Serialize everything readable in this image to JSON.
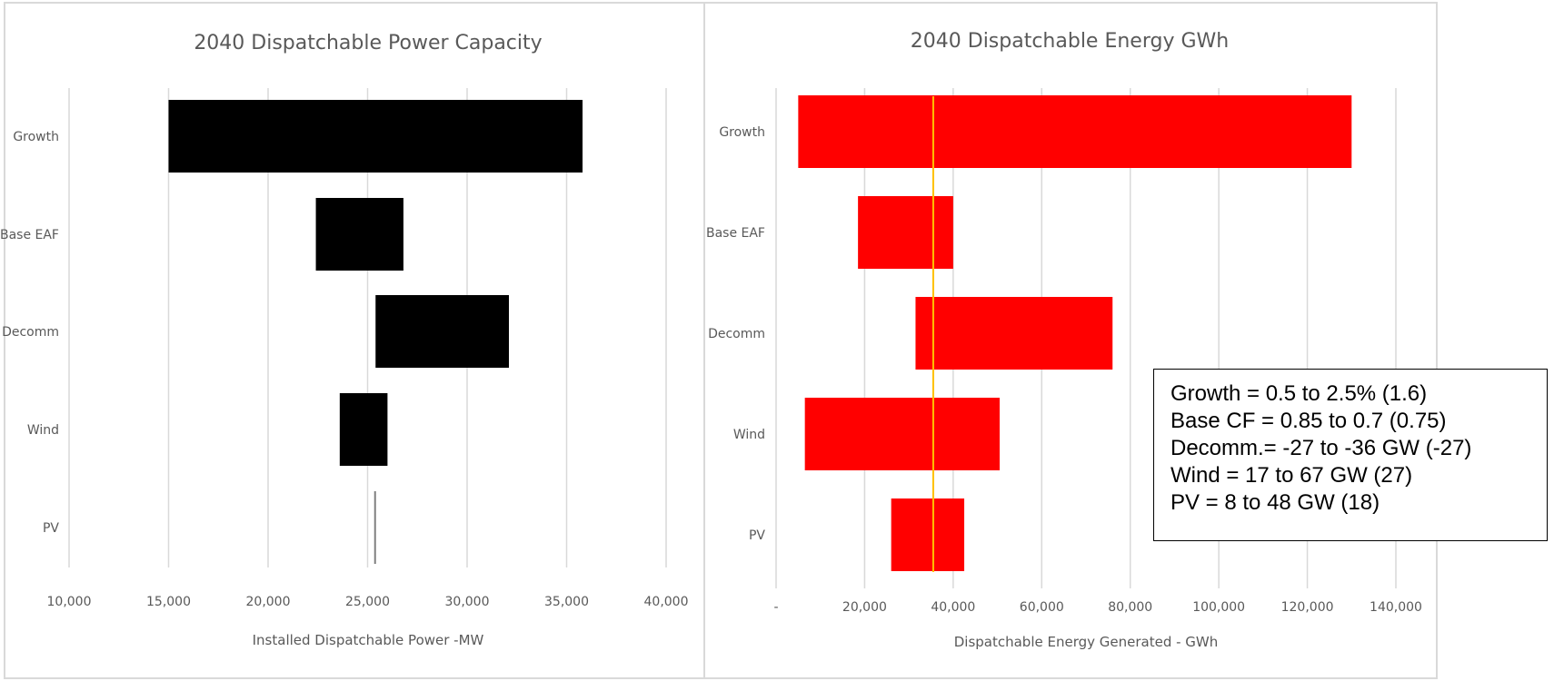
{
  "chart_data": [
    {
      "type": "bar",
      "subtype": "floating-horizontal",
      "title": "2040 Dispatchable Power Capacity",
      "xlabel": "Installed Dispatchable Power -MW",
      "ylabel": "",
      "categories": [
        "Growth",
        "Base EAF",
        "Decomm",
        "Wind",
        "PV"
      ],
      "low": [
        15000,
        22400,
        25400,
        23600,
        25330
      ],
      "high": [
        35800,
        26800,
        32100,
        26000,
        25400
      ],
      "xlim": [
        10000,
        40000
      ],
      "xticks": [
        10000,
        15000,
        20000,
        25000,
        30000,
        35000,
        40000
      ],
      "xtick_labels": [
        "10,000",
        "15,000",
        "20,000",
        "25,000",
        "30,000",
        "35,000",
        "40,000"
      ],
      "grid": true,
      "bar_color": "#000000",
      "pv_line_color": "#7f7f7f"
    },
    {
      "type": "bar",
      "subtype": "floating-horizontal",
      "title": "2040 Dispatchable  Energy GWh",
      "xlabel": "Dispatchable Energy Generated - GWh",
      "ylabel": "",
      "categories": [
        "Growth",
        "Base EAF",
        "Decomm",
        "Wind",
        "PV"
      ],
      "low": [
        5000,
        18500,
        31500,
        6500,
        26000
      ],
      "high": [
        130000,
        40000,
        76000,
        50500,
        42500
      ],
      "xlim": [
        0,
        140000
      ],
      "xticks": [
        0,
        20000,
        40000,
        60000,
        80000,
        100000,
        120000,
        140000
      ],
      "xtick_labels": [
        "-",
        "20,000",
        "40,000",
        "60,000",
        "80,000",
        "100,000",
        "120,000",
        "140,000"
      ],
      "grid": true,
      "bar_color": "#ff0000",
      "reference_line": 35500,
      "reference_color": "#ffc000"
    }
  ],
  "assumptions": [
    "Growth = 0.5 to 2.5% (1.6)",
    "Base CF = 0.85 to 0.7 (0.75)",
    "Decomm.= -27 to -36 GW (-27)",
    "Wind = 17 to 67 GW (27)",
    "PV = 8 to 48 GW (18)"
  ]
}
